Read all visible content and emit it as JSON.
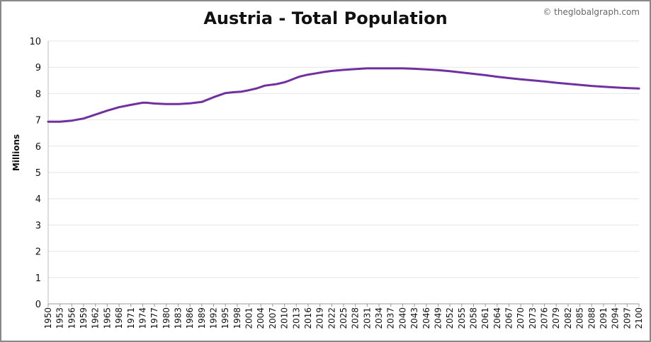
{
  "credit": "© theglobalgraph.com",
  "chart_data": {
    "type": "line",
    "title": "Austria - Total Population",
    "xlabel": "",
    "ylabel": "Millions",
    "ylim": [
      0,
      10
    ],
    "yticks": [
      0,
      1,
      2,
      3,
      4,
      5,
      6,
      7,
      8,
      9,
      10
    ],
    "xlim": [
      1950,
      2100
    ],
    "xticks": [
      "1950",
      "1953",
      "1956",
      "1959",
      "1962",
      "1965",
      "1968",
      "1971",
      "1974",
      "1977",
      "1980",
      "1983",
      "1986",
      "1989",
      "1992",
      "1995",
      "1998",
      "2001",
      "2004",
      "2007",
      "2010",
      "2013",
      "2016",
      "2019",
      "2022",
      "2025",
      "2028",
      "2031",
      "2034",
      "2037",
      "2040",
      "2043",
      "2046",
      "2049",
      "2052",
      "2055",
      "2058",
      "2061",
      "2064",
      "2067",
      "2070",
      "2073",
      "2076",
      "2079",
      "2082",
      "2085",
      "2088",
      "2091",
      "2094",
      "2097",
      "2100"
    ],
    "grid": true,
    "line_color": "#7030a0",
    "series": [
      {
        "x": [
          1950,
          1953,
          1956,
          1959,
          1962,
          1965,
          1968,
          1971,
          1974,
          1975,
          1977,
          1980,
          1983,
          1986,
          1989,
          1992,
          1995,
          1997,
          1999,
          2001,
          2003,
          2005,
          2008,
          2010,
          2011,
          2013,
          2014,
          2016,
          2018,
          2020,
          2022,
          2025,
          2028,
          2031,
          2034,
          2037,
          2040,
          2043,
          2046,
          2049,
          2052,
          2055,
          2058,
          2061,
          2064,
          2067,
          2070,
          2073,
          2076,
          2079,
          2082,
          2085,
          2088,
          2091,
          2094,
          2097,
          2100
        ],
        "y": [
          6.93,
          6.93,
          6.97,
          7.05,
          7.2,
          7.35,
          7.48,
          7.57,
          7.65,
          7.65,
          7.62,
          7.6,
          7.6,
          7.63,
          7.68,
          7.86,
          8.02,
          8.05,
          8.07,
          8.13,
          8.2,
          8.3,
          8.36,
          8.43,
          8.48,
          8.6,
          8.65,
          8.72,
          8.77,
          8.82,
          8.86,
          8.9,
          8.93,
          8.96,
          8.96,
          8.96,
          8.96,
          8.94,
          8.92,
          8.89,
          8.85,
          8.8,
          8.75,
          8.7,
          8.64,
          8.59,
          8.54,
          8.5,
          8.46,
          8.41,
          8.37,
          8.33,
          8.29,
          8.26,
          8.23,
          8.21,
          8.19
        ]
      }
    ]
  }
}
